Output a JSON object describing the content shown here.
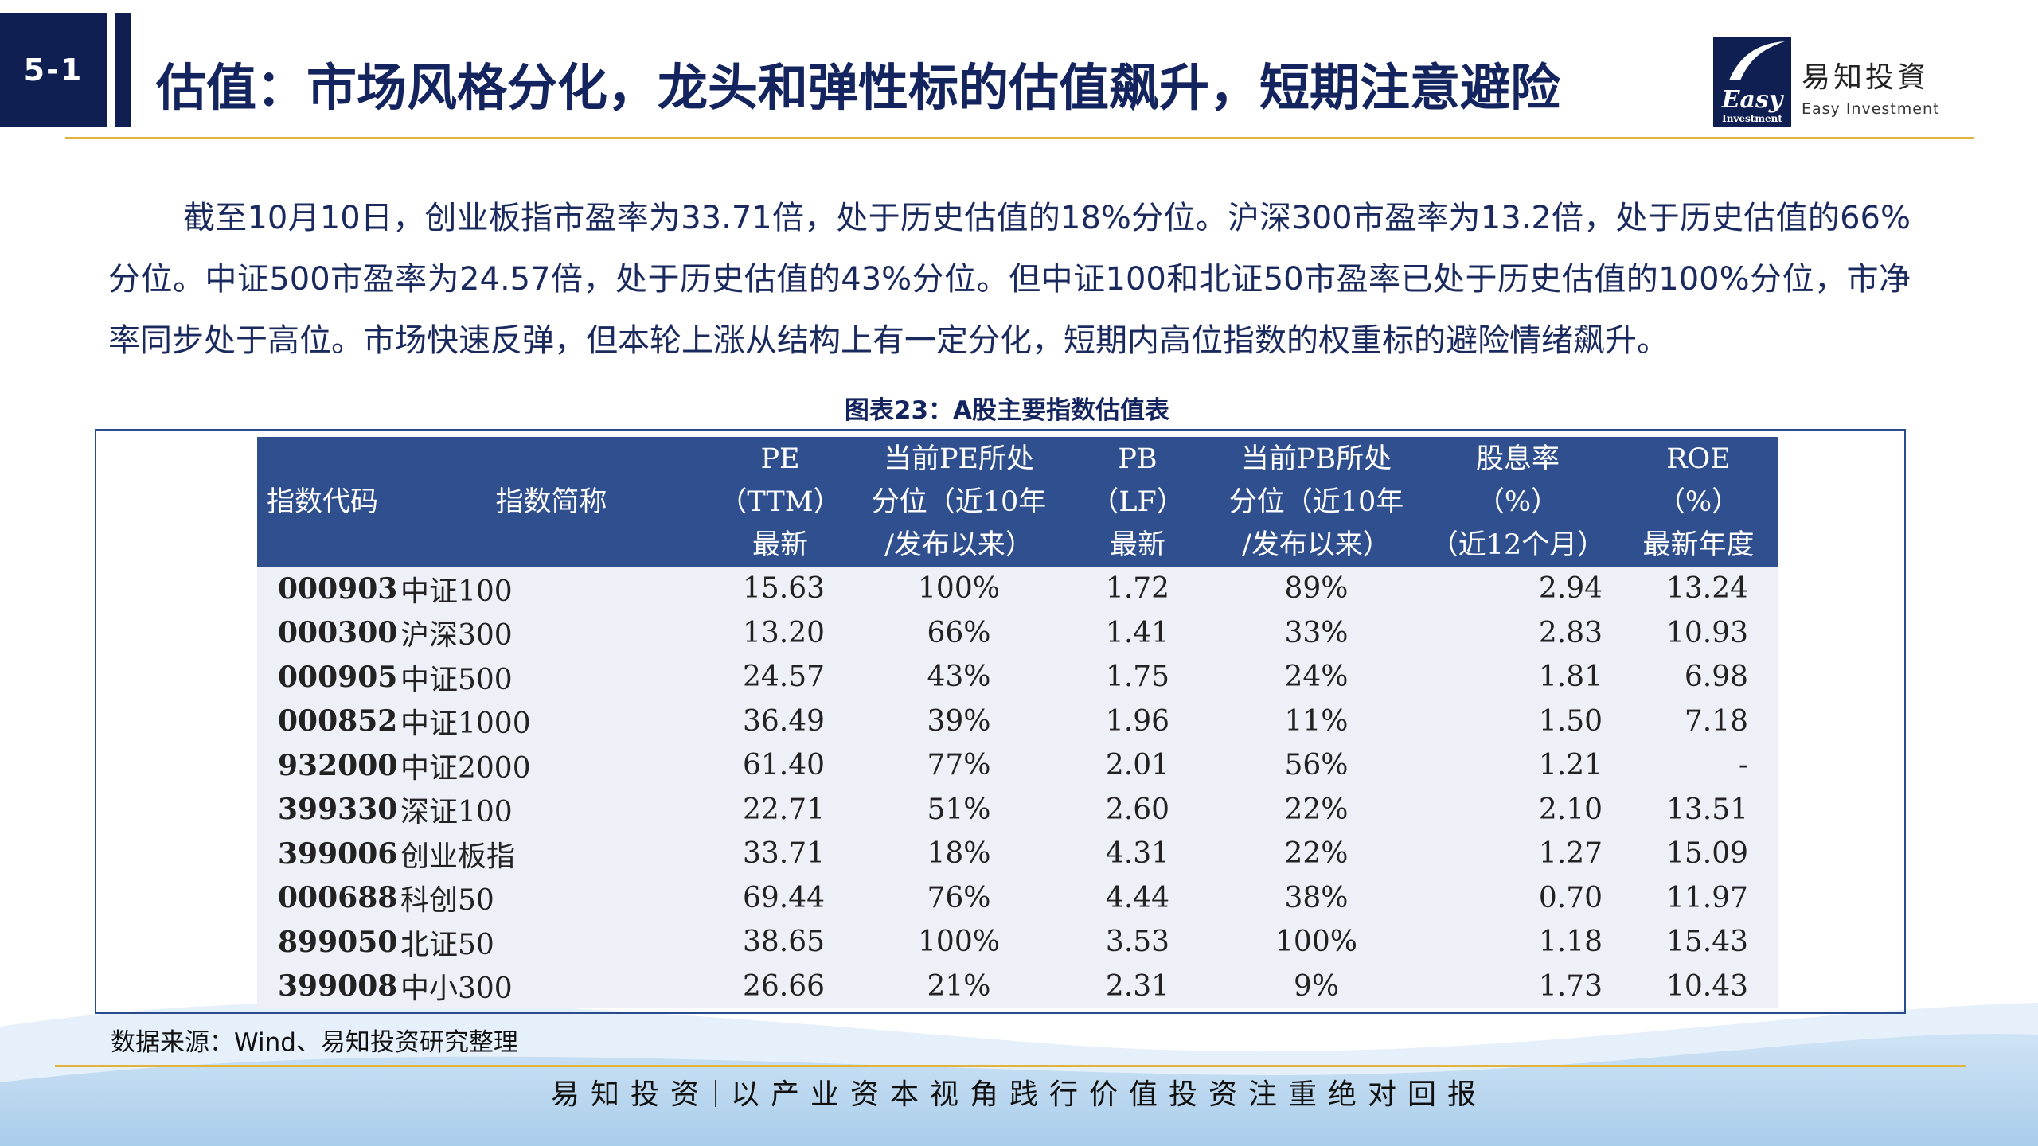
{
  "header": {
    "section": "5-1",
    "title": "估值：市场风格分化，龙头和弹性标的估值飙升，短期注意避险"
  },
  "logo": {
    "mark_text": "Easy",
    "mark_subtext": "Investment",
    "name": "易知投資",
    "name_en": "Easy Investment"
  },
  "paragraph": "截至10月10日，创业板指市盈率为33.71倍，处于历史估值的18%分位。沪深300市盈率为13.2倍，处于历史估值的66%分位。中证500市盈率为24.57倍，处于历史估值的43%分位。但中证100和北证50市盈率已处于历史估值的100%分位，市净率同步处于高位。市场快速反弹，但本轮上涨从结构上有一定分化，短期内高位指数的权重标的避险情绪飙升。",
  "table": {
    "caption": "图表23：A股主要指数估值表",
    "columns": [
      [
        "指数代码"
      ],
      [
        "指数简称"
      ],
      [
        "PE",
        "（TTM）",
        "最新"
      ],
      [
        "当前PE所处",
        "分位（近10年",
        "/发布以来）"
      ],
      [
        "PB",
        "（LF）",
        "最新"
      ],
      [
        "当前PB所处",
        "分位（近10年",
        "/发布以来）"
      ],
      [
        "股息率",
        "（%）",
        "（近12个月）"
      ],
      [
        "ROE",
        "（%）",
        "最新年度"
      ]
    ],
    "rows": [
      [
        "000903",
        "中证100",
        "15.63",
        "100%",
        "1.72",
        "89%",
        "2.94",
        "13.24"
      ],
      [
        "000300",
        "沪深300",
        "13.20",
        "66%",
        "1.41",
        "33%",
        "2.83",
        "10.93"
      ],
      [
        "000905",
        "中证500",
        "24.57",
        "43%",
        "1.75",
        "24%",
        "1.81",
        "6.98"
      ],
      [
        "000852",
        "中证1000",
        "36.49",
        "39%",
        "1.96",
        "11%",
        "1.50",
        "7.18"
      ],
      [
        "932000",
        "中证2000",
        "61.40",
        "77%",
        "2.01",
        "56%",
        "1.21",
        "-"
      ],
      [
        "399330",
        "深证100",
        "22.71",
        "51%",
        "2.60",
        "22%",
        "2.10",
        "13.51"
      ],
      [
        "399006",
        "创业板指",
        "33.71",
        "18%",
        "4.31",
        "22%",
        "1.27",
        "15.09"
      ],
      [
        "000688",
        "科创50",
        "69.44",
        "76%",
        "4.44",
        "38%",
        "0.70",
        "11.97"
      ],
      [
        "899050",
        "北证50",
        "38.65",
        "100%",
        "3.53",
        "100%",
        "1.18",
        "15.43"
      ],
      [
        "399008",
        "中小300",
        "26.66",
        "21%",
        "2.31",
        "9%",
        "1.73",
        "10.43"
      ]
    ],
    "source": "数据来源：Wind、易知投资研究整理"
  },
  "footer": {
    "brand": "易知投资",
    "slogan": "以产业资本视角践行价值投资注重绝对回报"
  }
}
